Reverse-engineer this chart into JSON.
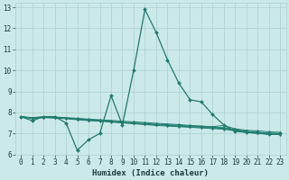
{
  "xlabel": "Humidex (Indice chaleur)",
  "background_color": "#cce9e9",
  "grid_color": "#aacece",
  "line_color": "#1e7b6e",
  "xlim_min": -0.5,
  "xlim_max": 23.5,
  "ylim_min": 6.0,
  "ylim_max": 13.2,
  "yticks": [
    6,
    7,
    8,
    9,
    10,
    11,
    12,
    13
  ],
  "xticks": [
    0,
    1,
    2,
    3,
    4,
    5,
    6,
    7,
    8,
    9,
    10,
    11,
    12,
    13,
    14,
    15,
    16,
    17,
    18,
    19,
    20,
    21,
    22,
    23
  ],
  "xtick_labels": [
    "0",
    "1",
    "2",
    "3",
    "4",
    "5",
    "6",
    "7",
    "8",
    "9",
    "10",
    "11",
    "12",
    "13",
    "14",
    "15",
    "16",
    "17",
    "18",
    "19",
    "20",
    "21",
    "22",
    "23"
  ],
  "series": [
    [
      7.8,
      7.6,
      7.8,
      7.8,
      7.5,
      6.2,
      6.7,
      7.0,
      8.8,
      7.4,
      10.0,
      12.9,
      11.8,
      10.5,
      9.4,
      8.6,
      8.5,
      7.9,
      7.4,
      7.1,
      7.05,
      7.05,
      6.95,
      7.0
    ],
    [
      7.8,
      7.75,
      7.8,
      7.78,
      7.75,
      7.72,
      7.68,
      7.65,
      7.62,
      7.58,
      7.55,
      7.52,
      7.48,
      7.45,
      7.42,
      7.38,
      7.35,
      7.32,
      7.38,
      7.22,
      7.15,
      7.12,
      7.08,
      7.05
    ],
    [
      7.8,
      7.73,
      7.78,
      7.76,
      7.73,
      7.69,
      7.65,
      7.62,
      7.58,
      7.54,
      7.5,
      7.47,
      7.44,
      7.41,
      7.38,
      7.35,
      7.32,
      7.29,
      7.28,
      7.18,
      7.1,
      7.05,
      7.02,
      7.0
    ],
    [
      7.8,
      7.72,
      7.77,
      7.75,
      7.72,
      7.67,
      7.63,
      7.6,
      7.56,
      7.52,
      7.48,
      7.44,
      7.41,
      7.38,
      7.35,
      7.32,
      7.29,
      7.26,
      7.24,
      7.15,
      7.08,
      7.02,
      6.99,
      6.97
    ],
    [
      7.8,
      7.7,
      7.75,
      7.73,
      7.7,
      7.65,
      7.61,
      7.58,
      7.54,
      7.5,
      7.46,
      7.42,
      7.38,
      7.35,
      7.32,
      7.29,
      7.26,
      7.23,
      7.2,
      7.12,
      7.05,
      6.99,
      6.96,
      6.94
    ]
  ],
  "marker": "D",
  "main_markersize": 2.0,
  "sub_markersize": 1.2,
  "main_linewidth": 0.9,
  "sub_linewidth": 0.7,
  "xlabel_fontsize": 6.5,
  "tick_fontsize": 5.5
}
